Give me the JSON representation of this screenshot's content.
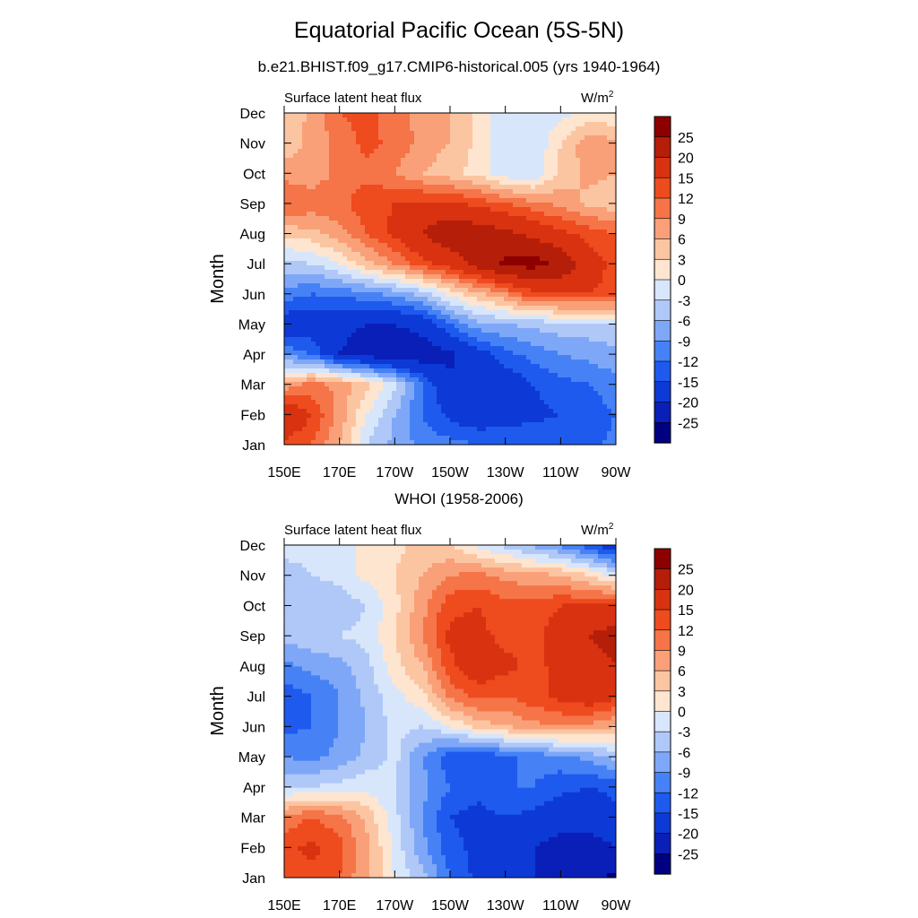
{
  "title": "Equatorial Pacific Ocean (5S-5N)",
  "subtitle": "b.e21.BHIST.f09_g17.CMIP6-historical.005 (yrs 1940-1964)",
  "colors": [
    "#000080",
    "#0A1FB8",
    "#0D3AD6",
    "#1E5AEE",
    "#4682F5",
    "#7EA8F7",
    "#AFC8F8",
    "#D8E6FB",
    "#FDE5D0",
    "#FCC5A2",
    "#F9A078",
    "#F57448",
    "#EE4B1E",
    "#D83210",
    "#B51E08",
    "#8C0000"
  ],
  "colorbar_labels": [
    "25",
    "20",
    "15",
    "12",
    "9",
    "6",
    "3",
    "0",
    "-3",
    "-6",
    "-9",
    "-12",
    "-15",
    "-20",
    "-25"
  ],
  "chart_data": [
    {
      "type": "heatmap",
      "name": "model",
      "left_label": "Surface latent heat flux",
      "right_label": "W/m",
      "units_superscript": "2",
      "ylabel": "Month",
      "x_ticks": [
        "150E",
        "170E",
        "170W",
        "150W",
        "130W",
        "110W",
        "90W"
      ],
      "y_ticks": [
        "Jan",
        "Feb",
        "Mar",
        "Apr",
        "May",
        "Jun",
        "Jul",
        "Aug",
        "Sep",
        "Oct",
        "Nov",
        "Dec"
      ],
      "xlim": [
        150,
        270
      ],
      "levels": [
        -25,
        -20,
        -15,
        -12,
        -9,
        -6,
        -3,
        0,
        3,
        6,
        9,
        12,
        15,
        20,
        25
      ],
      "grid_lons": [
        150,
        160,
        170,
        180,
        190,
        200,
        210,
        220,
        230,
        240,
        250,
        260,
        270
      ],
      "values": [
        [
          14,
          12,
          6,
          -3,
          -7,
          -10,
          -11,
          -12,
          -12,
          -12,
          -13,
          -13,
          -11
        ],
        [
          20,
          15,
          8,
          0,
          -6,
          -12,
          -16,
          -18,
          -17,
          -16,
          -15,
          -14,
          -12
        ],
        [
          7,
          10,
          8,
          4,
          -2,
          -12,
          -19,
          -20,
          -18,
          -15,
          -13,
          -12,
          -10
        ],
        [
          -10,
          -12,
          -20,
          -22,
          -24,
          -23,
          -21,
          -17,
          -13,
          -11,
          -9,
          -8,
          -7
        ],
        [
          -18,
          -18,
          -19,
          -20,
          -20,
          -18,
          -12,
          -7,
          -6,
          -5,
          -4,
          -4,
          -3
        ],
        [
          -10,
          -12,
          -11,
          -10,
          -8,
          -5,
          1,
          5,
          9,
          14,
          15,
          15,
          14
        ],
        [
          -4,
          -3,
          0,
          5,
          9,
          14,
          17,
          22,
          26,
          27,
          24,
          17,
          14
        ],
        [
          4,
          5,
          8,
          12,
          16,
          20,
          24,
          23,
          21,
          19,
          16,
          14,
          12
        ],
        [
          12,
          11,
          11,
          14,
          15,
          16,
          16,
          14,
          12,
          10,
          8,
          5,
          4
        ],
        [
          8,
          7,
          10,
          11,
          9,
          6,
          4,
          2,
          -2,
          -3,
          4,
          7,
          6
        ],
        [
          4,
          7,
          10,
          13,
          11,
          8,
          6,
          2,
          -3,
          -3,
          3,
          8,
          7
        ],
        [
          3,
          7,
          12,
          13,
          10,
          8,
          6,
          2,
          -2,
          -3,
          -1,
          1,
          0
        ]
      ]
    },
    {
      "type": "heatmap",
      "name": "observations",
      "panel_title": "WHOI (1958-2006)",
      "left_label": "Surface latent heat flux",
      "right_label": "W/m",
      "units_superscript": "2",
      "ylabel": "Month",
      "x_ticks": [
        "150E",
        "170E",
        "170W",
        "150W",
        "130W",
        "110W",
        "90W"
      ],
      "y_ticks": [
        "Jan",
        "Feb",
        "Mar",
        "Apr",
        "May",
        "Jun",
        "Jul",
        "Aug",
        "Sep",
        "Oct",
        "Nov",
        "Dec"
      ],
      "xlim": [
        150,
        270
      ],
      "levels": [
        -25,
        -20,
        -15,
        -12,
        -9,
        -6,
        -3,
        0,
        3,
        6,
        9,
        12,
        15,
        20,
        25
      ],
      "grid_lons": [
        150,
        160,
        170,
        180,
        190,
        200,
        210,
        220,
        230,
        240,
        250,
        260,
        270
      ],
      "values": [
        [
          12,
          14,
          12,
          6,
          0,
          -5,
          -12,
          -16,
          -18,
          -20,
          -22,
          -24,
          -26
        ],
        [
          14,
          16,
          13,
          7,
          -1,
          -8,
          -14,
          -16,
          -17,
          -20,
          -22,
          -22,
          -20
        ],
        [
          10,
          12,
          10,
          5,
          -2,
          -9,
          -15,
          -16,
          -15,
          -16,
          -18,
          -18,
          -16
        ],
        [
          -4,
          -3,
          -2,
          -1,
          -3,
          -8,
          -12,
          -14,
          -12,
          -12,
          -14,
          -15,
          -14
        ],
        [
          -9,
          -10,
          -8,
          -5,
          -2,
          -9,
          -14,
          -15,
          -13,
          -11,
          -10,
          -8,
          -5
        ],
        [
          -13,
          -12,
          -9,
          -6,
          -2,
          -3,
          0,
          4,
          6,
          8,
          9,
          8,
          6
        ],
        [
          -14,
          -12,
          -9,
          -5,
          -1,
          2,
          10,
          13,
          12,
          14,
          16,
          18,
          16
        ],
        [
          -10,
          -8,
          -7,
          -4,
          2,
          6,
          14,
          18,
          16,
          14,
          16,
          18,
          20
        ],
        [
          -5,
          -4,
          -3,
          -2,
          3,
          9,
          16,
          16,
          14,
          14,
          17,
          20,
          22
        ],
        [
          -6,
          -5,
          -5,
          -3,
          2,
          8,
          14,
          15,
          13,
          13,
          15,
          15,
          16
        ],
        [
          -5,
          -3,
          -2,
          1,
          3,
          6,
          9,
          10,
          8,
          7,
          6,
          3,
          -2
        ],
        [
          -1,
          -2,
          -2,
          1,
          2,
          4,
          3,
          -1,
          -4,
          -7,
          -10,
          -14,
          -18
        ]
      ]
    }
  ]
}
